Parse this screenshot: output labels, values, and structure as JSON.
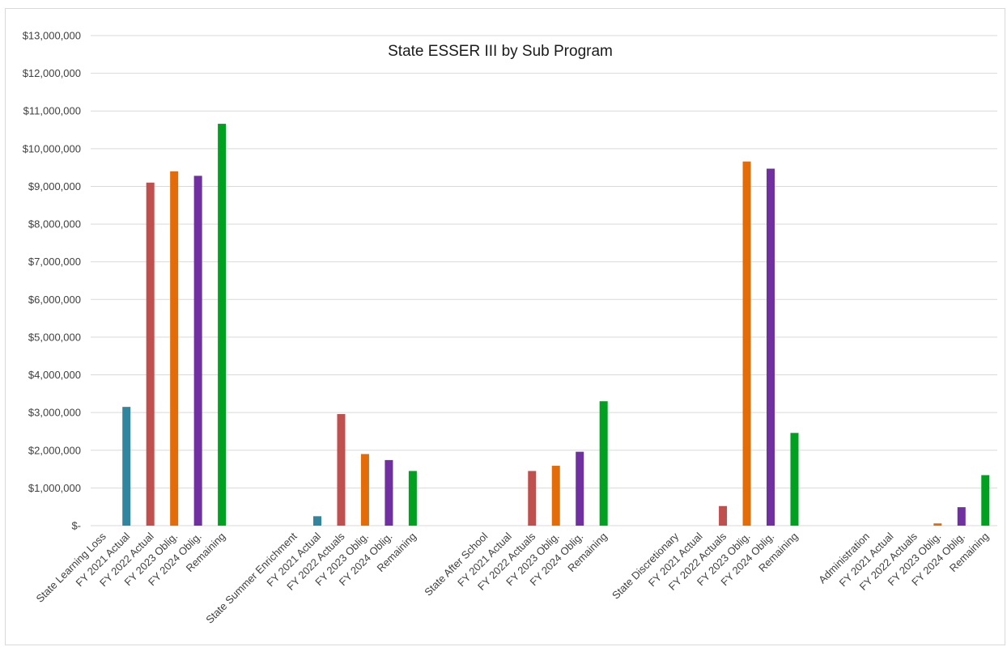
{
  "chart_data": {
    "type": "bar",
    "title": "State ESSER III by Sub Program",
    "xlabel": "",
    "ylabel": "",
    "ylim": [
      0,
      13000000
    ],
    "y_ticks": [
      {
        "value": 0,
        "label": "$-"
      },
      {
        "value": 1000000,
        "label": "$1,000,000"
      },
      {
        "value": 2000000,
        "label": "$2,000,000"
      },
      {
        "value": 3000000,
        "label": "$3,000,000"
      },
      {
        "value": 4000000,
        "label": "$4,000,000"
      },
      {
        "value": 5000000,
        "label": "$5,000,000"
      },
      {
        "value": 6000000,
        "label": "$6,000,000"
      },
      {
        "value": 7000000,
        "label": "$7,000,000"
      },
      {
        "value": 8000000,
        "label": "$8,000,000"
      },
      {
        "value": 9000000,
        "label": "$9,000,000"
      },
      {
        "value": 10000000,
        "label": "$10,000,000"
      },
      {
        "value": 11000000,
        "label": "$11,000,000"
      },
      {
        "value": 12000000,
        "label": "$12,000,000"
      },
      {
        "value": 13000000,
        "label": "$13,000,000"
      }
    ],
    "grid": true,
    "legend": "none",
    "categories": [
      {
        "label": "State Learning Loss",
        "value": null,
        "color": ""
      },
      {
        "label": "FY 2021 Actual",
        "value": 3150000,
        "color": "#31859C"
      },
      {
        "label": "FY 2022 Actual",
        "value": 9100000,
        "color": "#C0504D"
      },
      {
        "label": "FY 2023 Oblig.",
        "value": 9400000,
        "color": "#E36C09"
      },
      {
        "label": "FY 2024 Oblig.",
        "value": 9280000,
        "color": "#7030A0"
      },
      {
        "label": "Remaining",
        "value": 10660000,
        "color": "#00A020"
      },
      {
        "label": "",
        "value": null,
        "color": ""
      },
      {
        "label": "",
        "value": null,
        "color": ""
      },
      {
        "label": "State Summer Enrichment",
        "value": null,
        "color": ""
      },
      {
        "label": "FY 2021 Actual",
        "value": 250000,
        "color": "#31859C"
      },
      {
        "label": "FY 2022 Actuals",
        "value": 2960000,
        "color": "#C0504D"
      },
      {
        "label": "FY 2023 Oblig.",
        "value": 1900000,
        "color": "#E36C09"
      },
      {
        "label": "FY 2024 Oblig.",
        "value": 1740000,
        "color": "#7030A0"
      },
      {
        "label": "Remaining",
        "value": 1450000,
        "color": "#00A020"
      },
      {
        "label": "",
        "value": null,
        "color": ""
      },
      {
        "label": "",
        "value": null,
        "color": ""
      },
      {
        "label": "State After School",
        "value": null,
        "color": ""
      },
      {
        "label": "FY 2021 Actual",
        "value": null,
        "color": ""
      },
      {
        "label": "FY 2022 Actuals",
        "value": 1450000,
        "color": "#C0504D"
      },
      {
        "label": "FY 2023 Oblig.",
        "value": 1590000,
        "color": "#E36C09"
      },
      {
        "label": "FY 2024 Oblig.",
        "value": 1960000,
        "color": "#7030A0"
      },
      {
        "label": "Remaining",
        "value": 3300000,
        "color": "#00A020"
      },
      {
        "label": "",
        "value": null,
        "color": ""
      },
      {
        "label": "",
        "value": null,
        "color": ""
      },
      {
        "label": "State Discretionary",
        "value": null,
        "color": ""
      },
      {
        "label": "FY 2021 Actual",
        "value": null,
        "color": ""
      },
      {
        "label": "FY 2022 Actuals",
        "value": 520000,
        "color": "#C0504D"
      },
      {
        "label": "FY 2023 Oblig.",
        "value": 9660000,
        "color": "#E36C09"
      },
      {
        "label": "FY 2024 Oblig.",
        "value": 9470000,
        "color": "#7030A0"
      },
      {
        "label": "Remaining",
        "value": 2460000,
        "color": "#00A020"
      },
      {
        "label": "",
        "value": null,
        "color": ""
      },
      {
        "label": "",
        "value": null,
        "color": ""
      },
      {
        "label": "Administration",
        "value": null,
        "color": ""
      },
      {
        "label": "FY 2021 Actual",
        "value": null,
        "color": ""
      },
      {
        "label": "FY 2022 Actuals",
        "value": null,
        "color": ""
      },
      {
        "label": "FY 2023 Oblig.",
        "value": 60000,
        "color": "#E36C09"
      },
      {
        "label": "FY 2024 Oblig.",
        "value": 490000,
        "color": "#7030A0"
      },
      {
        "label": "Remaining",
        "value": 1340000,
        "color": "#00A020"
      }
    ]
  }
}
